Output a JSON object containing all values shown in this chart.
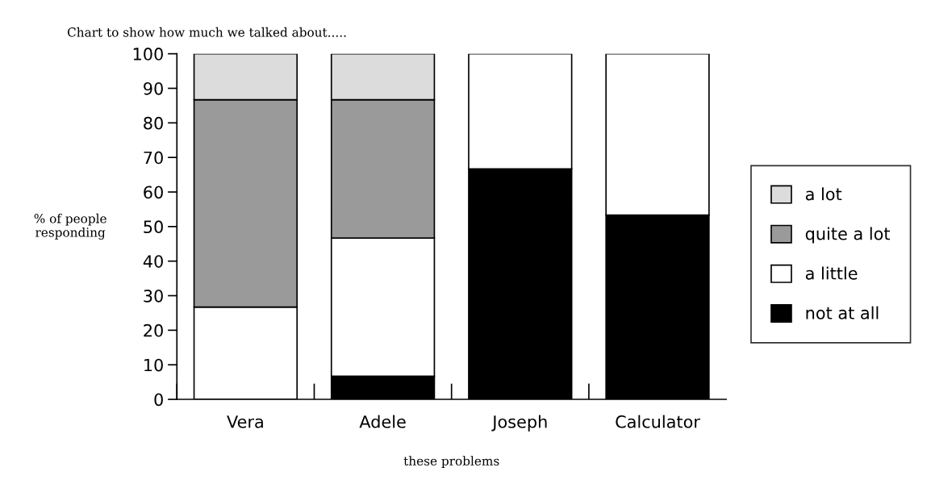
{
  "chart_data": {
    "type": "bar",
    "title": "Chart to show how much we talked about.....",
    "xlabel": "these problems",
    "ylabel": "% of people responding",
    "categories": [
      "Vera",
      "Adele",
      "Joseph",
      "Calculator"
    ],
    "stacked": true,
    "series": [
      {
        "name": "not at all",
        "color": "#000000",
        "values": [
          null,
          6.7,
          66.7,
          53.3
        ]
      },
      {
        "name": "a little",
        "color": "#ffffff",
        "values": [
          26.7,
          40,
          33.3,
          46.7
        ]
      },
      {
        "name": "quite a lot",
        "color": "#9a9a9a",
        "values": [
          60,
          40,
          null,
          null
        ]
      },
      {
        "name": "a lot",
        "color": "#dcdcdc",
        "values": [
          13.3,
          13.3,
          null,
          null
        ]
      }
    ],
    "ylim": [
      0,
      100
    ],
    "yticks": [
      0,
      10,
      20,
      30,
      40,
      50,
      60,
      70,
      80,
      90,
      100
    ],
    "grid": false,
    "legend": "right"
  }
}
